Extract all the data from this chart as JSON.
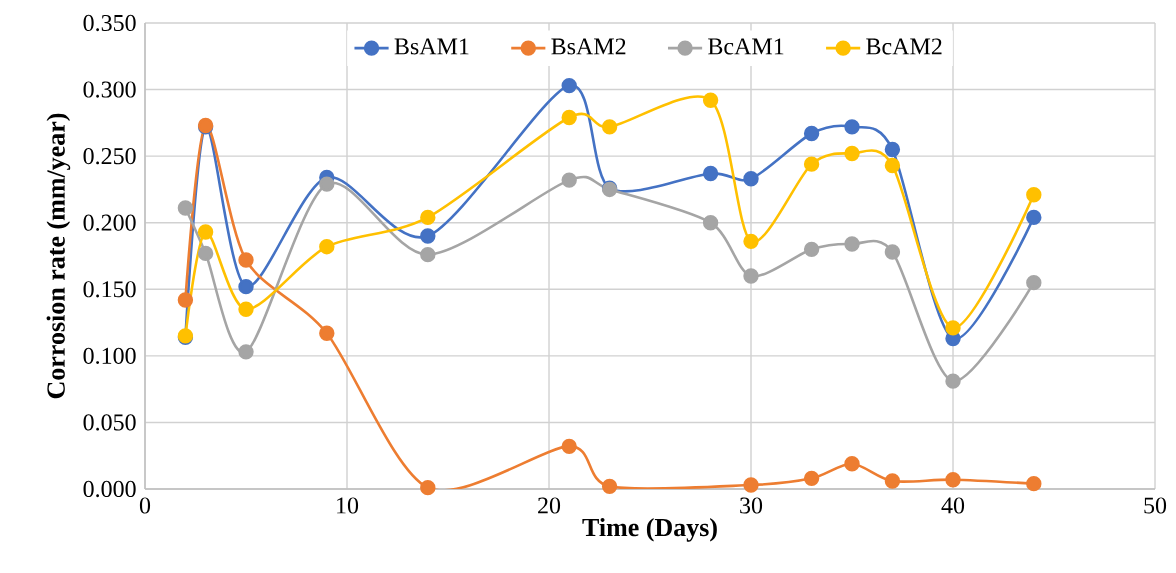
{
  "chart_data": {
    "type": "line",
    "xlabel": "Time (Days)",
    "ylabel": "Corrosion rate (mm/year)",
    "x": [
      2,
      3,
      5,
      9,
      14,
      21,
      23,
      28,
      30,
      33,
      35,
      37,
      40,
      44
    ],
    "series": [
      {
        "name": "BsAM1",
        "color": "#4472c4",
        "values": [
          0.114,
          0.272,
          0.152,
          0.234,
          0.19,
          0.303,
          0.226,
          0.237,
          0.233,
          0.267,
          0.272,
          0.255,
          0.113,
          0.204
        ]
      },
      {
        "name": "BsAM2",
        "color": "#ed7d31",
        "x": [
          2,
          3,
          5,
          9,
          14,
          21,
          23,
          30,
          33,
          35,
          37,
          40,
          44
        ],
        "values": [
          0.142,
          0.273,
          0.172,
          0.117,
          0.001,
          0.032,
          0.002,
          0.003,
          0.008,
          0.019,
          0.006,
          0.007,
          0.004
        ]
      },
      {
        "name": "BcAM1",
        "color": "#a5a5a5",
        "values": [
          0.211,
          0.177,
          0.103,
          0.229,
          0.176,
          0.232,
          0.225,
          0.2,
          0.16,
          0.18,
          0.184,
          0.178,
          0.081,
          0.155
        ]
      },
      {
        "name": "BcAM2",
        "color": "#ffc000",
        "values": [
          0.115,
          0.193,
          0.135,
          0.182,
          0.204,
          0.279,
          0.272,
          0.292,
          0.186,
          0.244,
          0.252,
          0.243,
          0.121,
          0.221
        ]
      }
    ],
    "xlim": [
      0,
      50
    ],
    "xticks": [
      0,
      10,
      20,
      30,
      40,
      50
    ],
    "ylim": [
      0,
      0.35
    ],
    "yticks": [
      {
        "value": 0,
        "label": "0.000"
      },
      {
        "value": 0.05,
        "label": "0.050"
      },
      {
        "value": 0.1,
        "label": "0.100"
      },
      {
        "value": 0.15,
        "label": "0.150"
      },
      {
        "value": 0.2,
        "label": "0.200"
      },
      {
        "value": 0.25,
        "label": "0.250"
      },
      {
        "value": 0.3,
        "label": "0.300"
      },
      {
        "value": 0.35,
        "label": "0.350"
      }
    ],
    "grid": true,
    "legend": "top",
    "marker": "circle",
    "line_style": "solid"
  }
}
